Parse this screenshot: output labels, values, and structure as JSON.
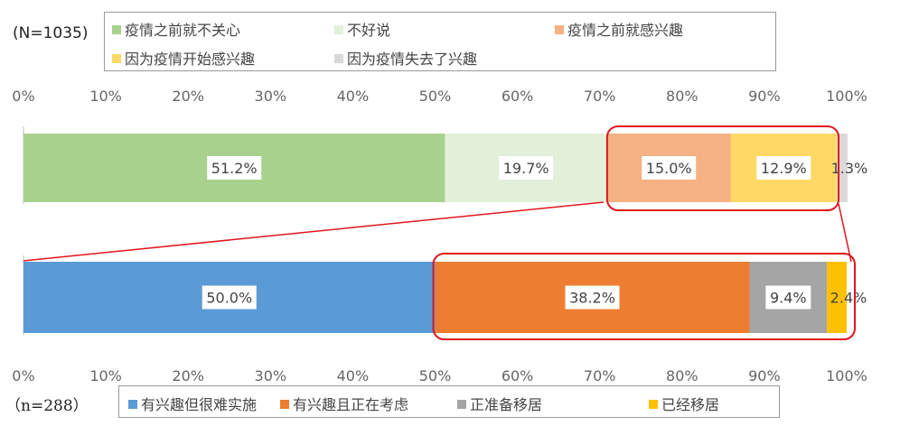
{
  "chart_data": [
    {
      "type": "bar",
      "orientation": "horizontal",
      "stacked": true,
      "sample": "(N=1035)",
      "xlim": [
        0,
        100
      ],
      "ticks": [
        "0%",
        "10%",
        "20%",
        "30%",
        "40%",
        "50%",
        "60%",
        "70%",
        "80%",
        "90%",
        "100%"
      ],
      "series": [
        {
          "name": "疫情之前就不关心",
          "value": 51.2,
          "label": "51.2%",
          "color": "#a9d18e"
        },
        {
          "name": "不好说",
          "value": 19.7,
          "label": "19.7%",
          "color": "#e2f0d9"
        },
        {
          "name": "疫情之前就感兴趣",
          "value": 15.0,
          "label": "15.0%",
          "color": "#f4b183"
        },
        {
          "name": "因为疫情开始感兴趣",
          "value": 12.9,
          "label": "12.9%",
          "color": "#ffd966"
        },
        {
          "name": "因为疫情失去了兴趣",
          "value": 1.3,
          "label": "1.3%",
          "color": "#d9d9d9"
        }
      ],
      "legend_position": "top"
    },
    {
      "type": "bar",
      "orientation": "horizontal",
      "stacked": true,
      "sample": "（n=288）",
      "xlim": [
        0,
        100
      ],
      "ticks": [
        "0%",
        "10%",
        "20%",
        "30%",
        "40%",
        "50%",
        "60%",
        "70%",
        "80%",
        "90%",
        "100%"
      ],
      "series": [
        {
          "name": "有兴趣但很难实施",
          "value": 50.0,
          "label": "50.0%",
          "color": "#5b9bd5"
        },
        {
          "name": "有兴趣且正在考虑",
          "value": 38.2,
          "label": "38.2%",
          "color": "#ed7d31"
        },
        {
          "name": "正准备移居",
          "value": 9.4,
          "label": "9.4%",
          "color": "#a5a5a5"
        },
        {
          "name": "已经移居",
          "value": 2.4,
          "label": "2.4%",
          "color": "#ffc000"
        }
      ],
      "legend_position": "bottom"
    }
  ],
  "colors": {
    "highlight": "#e0161e",
    "axis": "#bfbfbf"
  }
}
